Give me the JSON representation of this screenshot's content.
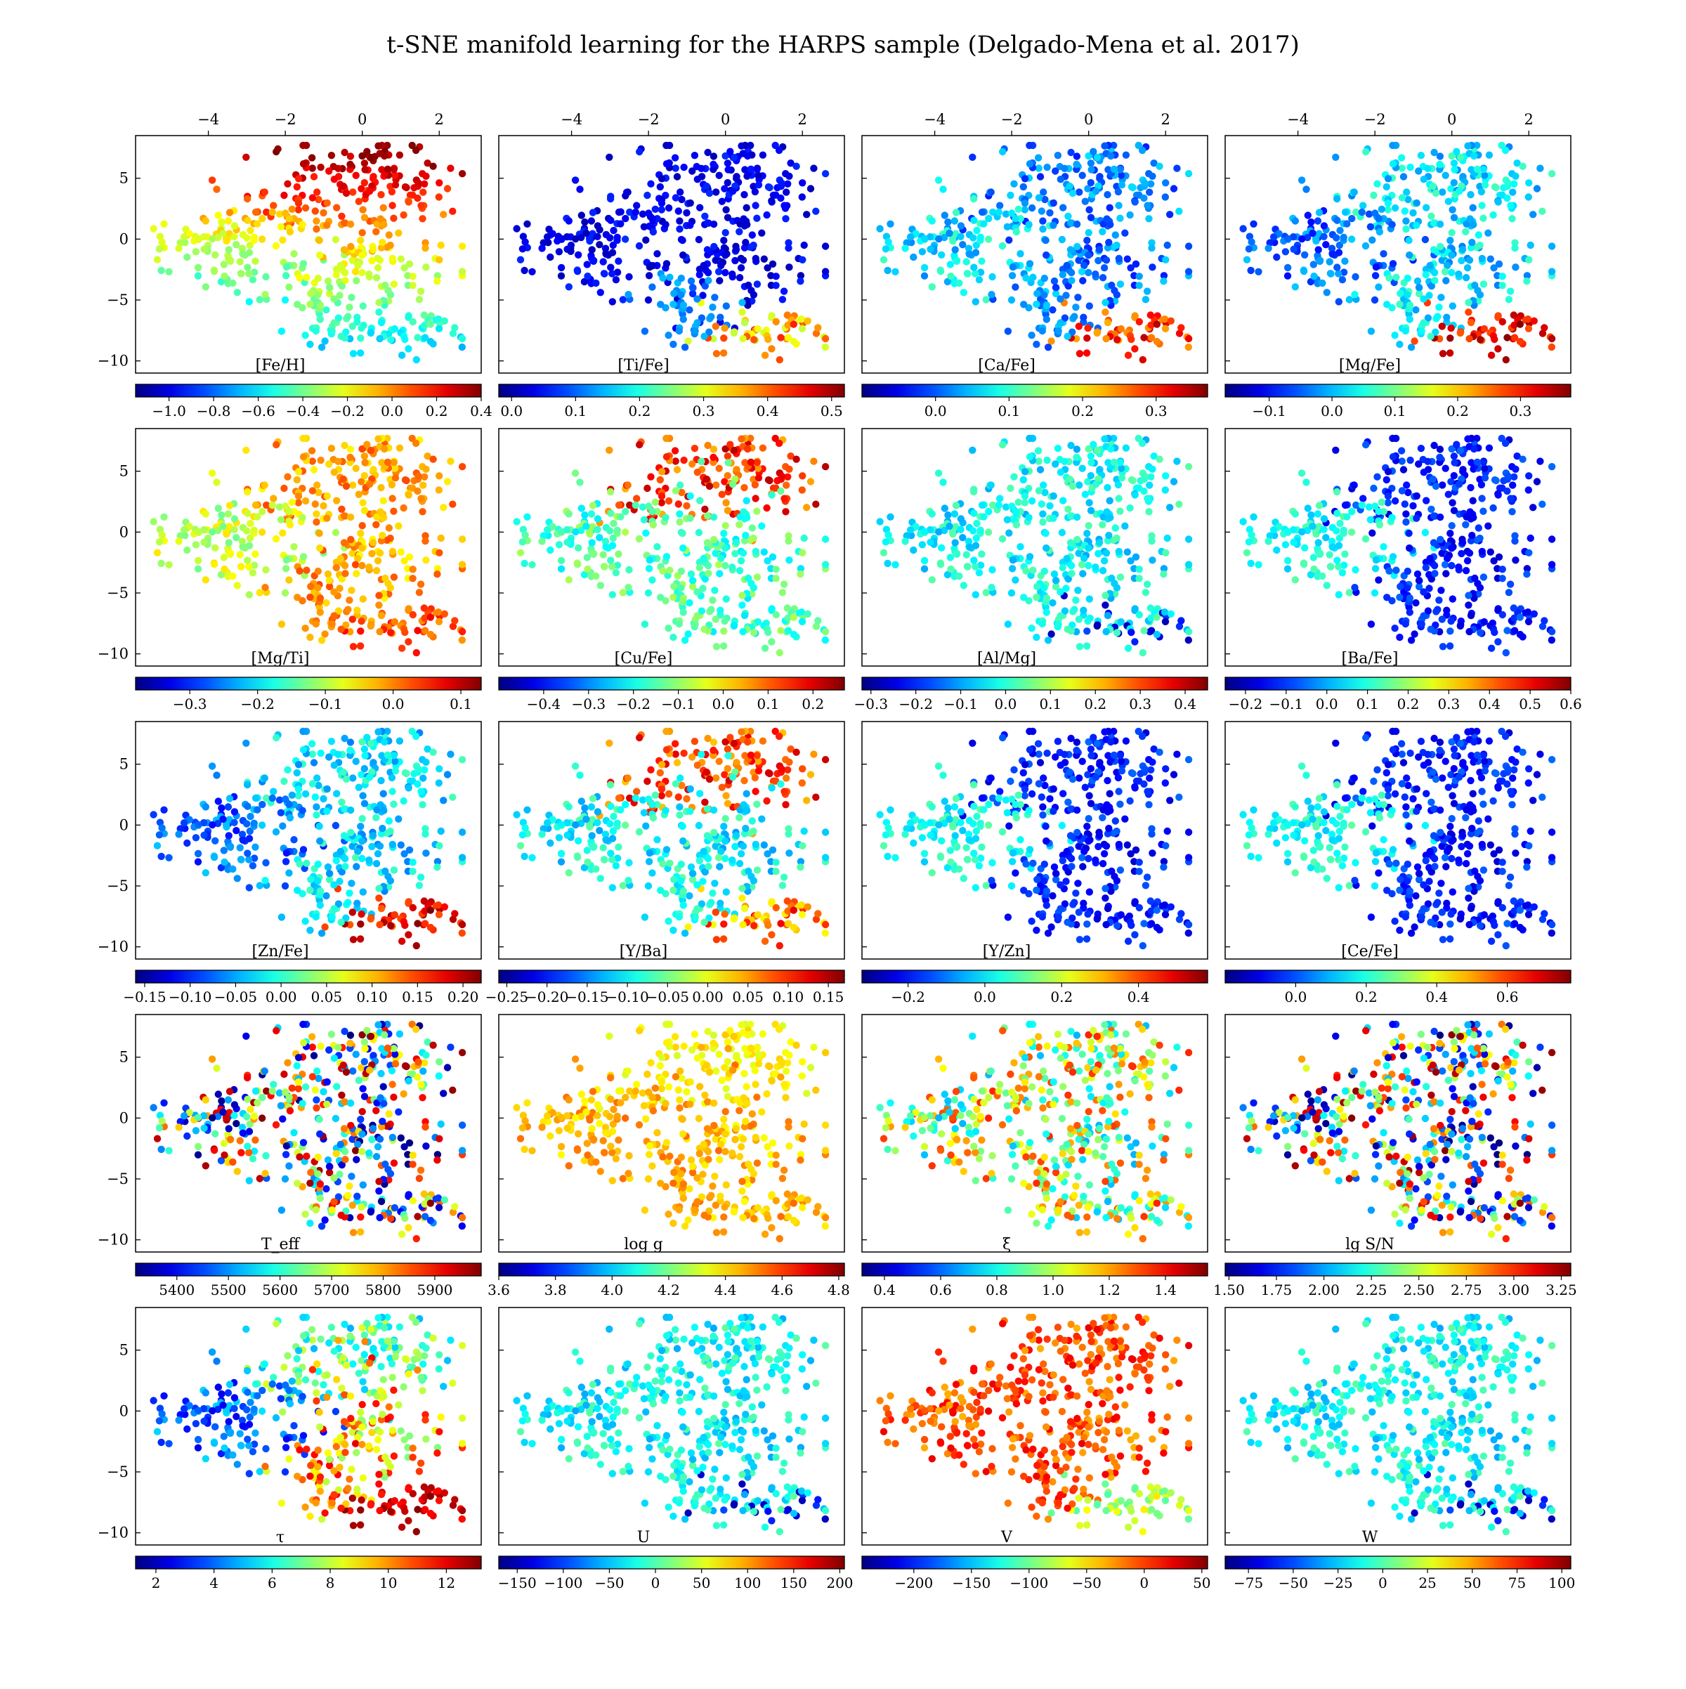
{
  "title": "t-SNE manifold learning for the HARPS sample (Delgado-Mena et al. 2017)",
  "shared_axes": {
    "xlim": [
      -5.8,
      3.0
    ],
    "ylim": [
      -11,
      8.5
    ],
    "top_xticks": [
      "−4",
      "−2",
      "0",
      "2"
    ],
    "top_xtick_values": [
      -4,
      -2,
      0,
      2
    ],
    "left_yticks": [
      "5",
      "0",
      "−5",
      "−10"
    ],
    "left_ytick_values": [
      5,
      0,
      -5,
      -10
    ]
  },
  "colormap": "jet",
  "chart_data": [
    {
      "type": "scatter",
      "label": "[Fe/H]",
      "clim": [
        -1.15,
        0.4
      ],
      "cbar_ticks": [
        "−1.0",
        "−0.8",
        "−0.6",
        "−0.4",
        "−0.2",
        "0.0",
        "0.2",
        "0.4"
      ],
      "cbar_tick_values": [
        -1.0,
        -0.8,
        -0.6,
        -0.4,
        -0.2,
        0.0,
        0.2,
        0.4
      ],
      "pattern": "feh"
    },
    {
      "type": "scatter",
      "label": "[Ti/Fe]",
      "clim": [
        -0.02,
        0.52
      ],
      "cbar_ticks": [
        "0.0",
        "0.1",
        "0.2",
        "0.3",
        "0.4",
        "0.5"
      ],
      "cbar_tick_values": [
        0.0,
        0.1,
        0.2,
        0.3,
        0.4,
        0.5
      ],
      "pattern": "bottom_hot_low"
    },
    {
      "type": "scatter",
      "label": "[Ca/Fe]",
      "clim": [
        -0.1,
        0.37
      ],
      "cbar_ticks": [
        "0.0",
        "0.1",
        "0.2",
        "0.3"
      ],
      "cbar_tick_values": [
        0.0,
        0.1,
        0.2,
        0.3
      ],
      "pattern": "bottom_hot_mid"
    },
    {
      "type": "scatter",
      "label": "[Mg/Fe]",
      "clim": [
        -0.17,
        0.38
      ],
      "cbar_ticks": [
        "−0.1",
        "0.0",
        "0.1",
        "0.2",
        "0.3"
      ],
      "cbar_tick_values": [
        -0.1,
        0.0,
        0.1,
        0.2,
        0.3
      ],
      "pattern": "bottom_hot_cyan"
    },
    {
      "type": "scatter",
      "label": "[Mg/Ti]",
      "clim": [
        -0.38,
        0.13
      ],
      "cbar_ticks": [
        "−0.3",
        "−0.2",
        "−0.1",
        "0.0",
        "0.1"
      ],
      "cbar_tick_values": [
        -0.3,
        -0.2,
        -0.1,
        0.0,
        0.1
      ],
      "pattern": "orange"
    },
    {
      "type": "scatter",
      "label": "[Cu/Fe]",
      "clim": [
        -0.5,
        0.27
      ],
      "cbar_ticks": [
        "−0.4",
        "−0.3",
        "−0.2",
        "−0.1",
        "0.0",
        "0.1",
        "0.2"
      ],
      "cbar_tick_values": [
        -0.4,
        -0.3,
        -0.2,
        -0.1,
        0.0,
        0.1,
        0.2
      ],
      "pattern": "top_hot"
    },
    {
      "type": "scatter",
      "label": "[Al/Mg]",
      "clim": [
        -0.32,
        0.45
      ],
      "cbar_ticks": [
        "−0.3",
        "−0.2",
        "−0.1",
        "0.0",
        "0.1",
        "0.2",
        "0.3",
        "0.4"
      ],
      "cbar_tick_values": [
        -0.3,
        -0.2,
        -0.1,
        0.0,
        0.1,
        0.2,
        0.3,
        0.4
      ],
      "pattern": "cyan_green"
    },
    {
      "type": "scatter",
      "label": "[Ba/Fe]",
      "clim": [
        -0.25,
        0.6
      ],
      "cbar_ticks": [
        "−0.2",
        "−0.1",
        "0.0",
        "0.1",
        "0.2",
        "0.3",
        "0.4",
        "0.5",
        "0.6"
      ],
      "cbar_tick_values": [
        -0.2,
        -0.1,
        0.0,
        0.1,
        0.2,
        0.3,
        0.4,
        0.5,
        0.6
      ],
      "pattern": "left_cyan_blue"
    },
    {
      "type": "scatter",
      "label": "[Zn/Fe]",
      "clim": [
        -0.16,
        0.22
      ],
      "cbar_ticks": [
        "−0.15",
        "−0.10",
        "−0.05",
        "0.00",
        "0.05",
        "0.10",
        "0.15",
        "0.20"
      ],
      "cbar_tick_values": [
        -0.15,
        -0.1,
        -0.05,
        0.0,
        0.05,
        0.1,
        0.15,
        0.2
      ],
      "pattern": "bottom_hot_cyan"
    },
    {
      "type": "scatter",
      "label": "[Y/Ba]",
      "clim": [
        -0.26,
        0.17
      ],
      "cbar_ticks": [
        "−0.25",
        "−0.20",
        "−0.15",
        "−0.10",
        "−0.05",
        "0.00",
        "0.05",
        "0.10",
        "0.15"
      ],
      "cbar_tick_values": [
        -0.25,
        -0.2,
        -0.15,
        -0.1,
        -0.05,
        0.0,
        0.05,
        0.1,
        0.15
      ],
      "pattern": "top_hot_green"
    },
    {
      "type": "scatter",
      "label": "[Y/Zn]",
      "clim": [
        -0.32,
        0.58
      ],
      "cbar_ticks": [
        "−0.2",
        "0.0",
        "0.2",
        "0.4"
      ],
      "cbar_tick_values": [
        -0.2,
        0.0,
        0.2,
        0.4
      ],
      "pattern": "left_cyan_blue"
    },
    {
      "type": "scatter",
      "label": "[Ce/Fe]",
      "clim": [
        -0.2,
        0.78
      ],
      "cbar_ticks": [
        "0.0",
        "0.2",
        "0.4",
        "0.6"
      ],
      "cbar_tick_values": [
        0.0,
        0.2,
        0.4,
        0.6
      ],
      "pattern": "left_cyan_blue"
    },
    {
      "type": "scatter",
      "label": "T_eff",
      "clim": [
        5320,
        5990
      ],
      "cbar_ticks": [
        "5400",
        "5500",
        "5600",
        "5700",
        "5800",
        "5900"
      ],
      "cbar_tick_values": [
        5400,
        5500,
        5600,
        5700,
        5800,
        5900
      ],
      "pattern": "random"
    },
    {
      "type": "scatter",
      "label": "log g",
      "clim": [
        3.6,
        4.82
      ],
      "cbar_ticks": [
        "3.6",
        "3.8",
        "4.0",
        "4.2",
        "4.4",
        "4.6",
        "4.8"
      ],
      "cbar_tick_values": [
        3.6,
        3.8,
        4.0,
        4.2,
        4.4,
        4.6,
        4.8
      ],
      "pattern": "logg"
    },
    {
      "type": "scatter",
      "label": "ξ",
      "clim": [
        0.32,
        1.55
      ],
      "cbar_ticks": [
        "0.4",
        "0.6",
        "0.8",
        "1.0",
        "1.2",
        "1.4"
      ],
      "cbar_tick_values": [
        0.4,
        0.6,
        0.8,
        1.0,
        1.2,
        1.4
      ],
      "pattern": "random_soft"
    },
    {
      "type": "scatter",
      "label": "lg S/N",
      "clim": [
        1.48,
        3.3
      ],
      "cbar_ticks": [
        "1.50",
        "1.75",
        "2.00",
        "2.25",
        "2.50",
        "2.75",
        "3.00",
        "3.25"
      ],
      "cbar_tick_values": [
        1.5,
        1.75,
        2.0,
        2.25,
        2.5,
        2.75,
        3.0,
        3.25
      ],
      "pattern": "random"
    },
    {
      "type": "scatter",
      "label": "τ",
      "clim": [
        1.3,
        13.2
      ],
      "cbar_ticks": [
        "2",
        "4",
        "6",
        "8",
        "10",
        "12"
      ],
      "cbar_tick_values": [
        2,
        4,
        6,
        8,
        10,
        12
      ],
      "pattern": "tau"
    },
    {
      "type": "scatter",
      "label": "U",
      "clim": [
        -170,
        205
      ],
      "cbar_ticks": [
        "−150",
        "−100",
        "−50",
        "0",
        "50",
        "100",
        "150",
        "200"
      ],
      "cbar_tick_values": [
        -150,
        -100,
        -50,
        0,
        50,
        100,
        150,
        200
      ],
      "pattern": "cyan_green"
    },
    {
      "type": "scatter",
      "label": "V",
      "clim": [
        -245,
        55
      ],
      "cbar_ticks": [
        "−200",
        "−150",
        "−100",
        "−50",
        "0",
        "50"
      ],
      "cbar_tick_values": [
        -200,
        -150,
        -100,
        -50,
        0,
        50
      ],
      "pattern": "orange_red"
    },
    {
      "type": "scatter",
      "label": "W",
      "clim": [
        -88,
        105
      ],
      "cbar_ticks": [
        "−75",
        "−50",
        "−25",
        "0",
        "25",
        "50",
        "75",
        "100"
      ],
      "cbar_tick_values": [
        -75,
        -50,
        -25,
        0,
        25,
        50,
        75,
        100
      ],
      "pattern": "cyan_green"
    }
  ]
}
